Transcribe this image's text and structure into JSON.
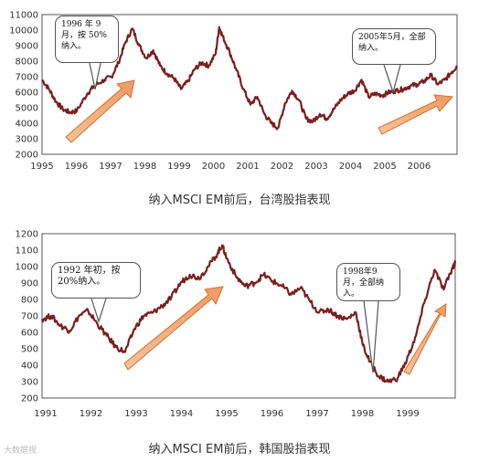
{
  "chart_data": [
    {
      "type": "line",
      "caption": "纳入MSCI EM前后，台湾股指表现",
      "x_ticks": [
        "1995",
        "1996",
        "1997",
        "1998",
        "1999",
        "2000",
        "2001",
        "2002",
        "2003",
        "2004",
        "2005",
        "2006"
      ],
      "y_ticks": [
        2000,
        3000,
        4000,
        5000,
        6000,
        7000,
        8000,
        9000,
        10000,
        11000
      ],
      "ylim": [
        2000,
        11000
      ],
      "xlim": [
        1995.0,
        2006.95
      ],
      "grid": false,
      "series": [
        {
          "x": [
            1995.0,
            1995.2,
            1995.4,
            1995.6,
            1995.8,
            1996.0,
            1996.3,
            1996.5,
            1996.8,
            1997.0,
            1997.2,
            1997.4,
            1997.6,
            1997.8,
            1998.0,
            1998.2,
            1998.4,
            1998.6,
            1998.8,
            1999.0,
            1999.2,
            1999.4,
            1999.6,
            1999.8,
            2000.0,
            2000.1,
            2000.2,
            2000.4,
            2000.6,
            2000.8,
            2001.0,
            2001.2,
            2001.4,
            2001.6,
            2001.8,
            2002.0,
            2002.2,
            2002.4,
            2002.6,
            2002.8,
            2003.0,
            2003.2,
            2003.4,
            2003.6,
            2003.8,
            2004.0,
            2004.2,
            2004.4,
            2004.6,
            2004.8,
            2005.0,
            2005.2,
            2005.4,
            2005.6,
            2005.8,
            2006.0,
            2006.2,
            2006.4,
            2006.6,
            2006.8,
            2006.95
          ],
          "values": [
            6800,
            6200,
            5400,
            4900,
            4700,
            4800,
            5900,
            6400,
            6800,
            7000,
            7900,
            9200,
            10100,
            9000,
            8200,
            8700,
            7700,
            7200,
            6900,
            6200,
            6700,
            7500,
            7900,
            7700,
            8500,
            10200,
            9600,
            8600,
            7400,
            6200,
            5200,
            5700,
            4600,
            4000,
            3700,
            5300,
            6100,
            5500,
            4300,
            4100,
            4600,
            4300,
            4900,
            5500,
            5900,
            6100,
            6800,
            5700,
            5900,
            5800,
            6000,
            6100,
            6200,
            6400,
            6500,
            6700,
            7100,
            6500,
            6800,
            7300,
            7700
          ]
        }
      ],
      "annotations": [
        {
          "text": "1996 年 9\n月，按 50%\n纳入。"
        },
        {
          "text": "2005年5月，全部\n纳入。"
        }
      ],
      "arrow_color": "#f0a87a",
      "line_color": "#7a1f1f"
    },
    {
      "type": "line",
      "caption": "纳入MSCI EM前后，韩国股指表现",
      "x_ticks": [
        "1991",
        "1992",
        "1993",
        "1994",
        "1995",
        "1996",
        "1997",
        "1998",
        "1999"
      ],
      "y_ticks": [
        200,
        300,
        400,
        500,
        600,
        700,
        800,
        900,
        1000,
        1100,
        1200
      ],
      "ylim": [
        200,
        1200
      ],
      "xlim": [
        1991.0,
        1999.95
      ],
      "grid": false,
      "series": [
        {
          "x": [
            1991.0,
            1991.2,
            1991.4,
            1991.6,
            1991.8,
            1992.0,
            1992.2,
            1992.4,
            1992.6,
            1992.8,
            1993.0,
            1993.2,
            1993.4,
            1993.6,
            1993.8,
            1994.0,
            1994.2,
            1994.4,
            1994.6,
            1994.8,
            1994.9,
            1995.0,
            1995.2,
            1995.4,
            1995.6,
            1995.8,
            1996.0,
            1996.2,
            1996.4,
            1996.6,
            1996.8,
            1997.0,
            1997.2,
            1997.4,
            1997.6,
            1997.8,
            1997.95,
            1998.1,
            1998.3,
            1998.5,
            1998.7,
            1998.9,
            1999.1,
            1999.3,
            1999.5,
            1999.7,
            1999.9,
            1999.95
          ],
          "values": [
            680,
            700,
            640,
            610,
            700,
            730,
            650,
            580,
            510,
            480,
            620,
            700,
            720,
            760,
            810,
            900,
            950,
            930,
            1000,
            1080,
            1130,
            1050,
            940,
            880,
            900,
            950,
            910,
            880,
            830,
            870,
            790,
            720,
            740,
            700,
            680,
            720,
            520,
            420,
            330,
            300,
            320,
            430,
            580,
            800,
            980,
            860,
            1000,
            1020
          ]
        }
      ],
      "annotations": [
        {
          "text": "1992 年初，按\n20%纳入。"
        },
        {
          "text": "1998年9\n月，全部纳\n入。"
        }
      ],
      "arrow_color": "#f0a87a",
      "line_color": "#7a1f1f"
    }
  ],
  "watermark": "大数据视"
}
